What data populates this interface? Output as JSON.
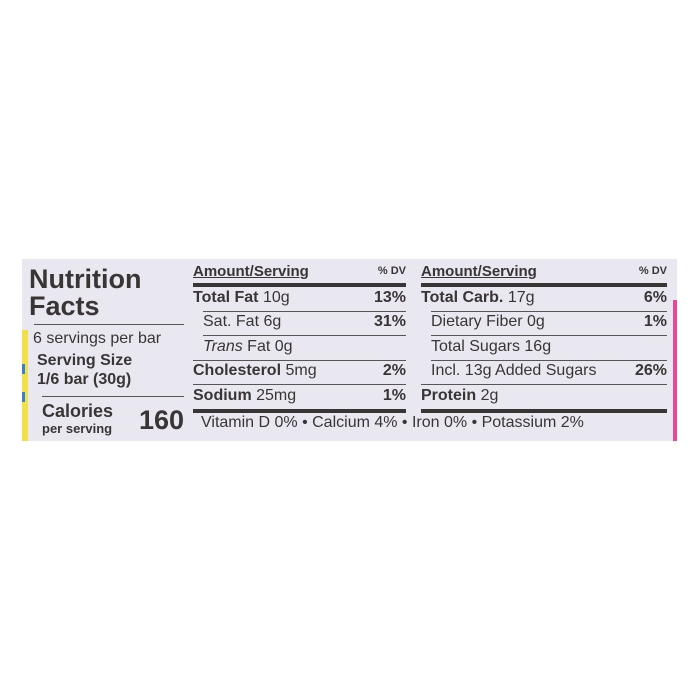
{
  "title": [
    "Nutrition",
    "Facts"
  ],
  "servings_per_container": "6 servings per bar",
  "serving_size_label": "Serving Size",
  "serving_size_value": "1/6 bar (30g)",
  "calories_label": "Calories",
  "calories_sub": "per serving",
  "calories_value": "160",
  "left_table": {
    "header": "Amount/Serving",
    "dv_header": "% DV",
    "rows": [
      {
        "name": "Total Fat",
        "amount": "10g",
        "dv": "13%"
      },
      {
        "name": "Sat. Fat",
        "amount": "6g",
        "dv": "31%"
      },
      {
        "name": "Trans",
        "amount": "Fat 0g",
        "dv": ""
      },
      {
        "name": "Cholesterol",
        "amount": "5mg",
        "dv": "2%"
      },
      {
        "name": "Sodium",
        "amount": "25mg",
        "dv": "1%"
      }
    ]
  },
  "right_table": {
    "header": "Amount/Serving",
    "dv_header": "% DV",
    "rows": [
      {
        "name": "Total Carb.",
        "amount": "17g",
        "dv": "6%"
      },
      {
        "name": "Dietary Fiber",
        "amount": "0g",
        "dv": "1%"
      },
      {
        "name": "Total Sugars",
        "amount": "16g",
        "dv": ""
      },
      {
        "name": "Incl. 13g Added Sugars",
        "amount": "",
        "dv": "26%"
      },
      {
        "name": "Protein",
        "amount": "2g",
        "dv": ""
      }
    ]
  },
  "vitamins": "Vitamin D 0% • Calcium 4% • Iron 0% • Potassium 2%",
  "colors": {
    "panel": "#e9e8f0",
    "text": "#3a3535",
    "yellow": "#f2e04a",
    "pink": "#e8479a",
    "blue": "#3a7fd0"
  }
}
